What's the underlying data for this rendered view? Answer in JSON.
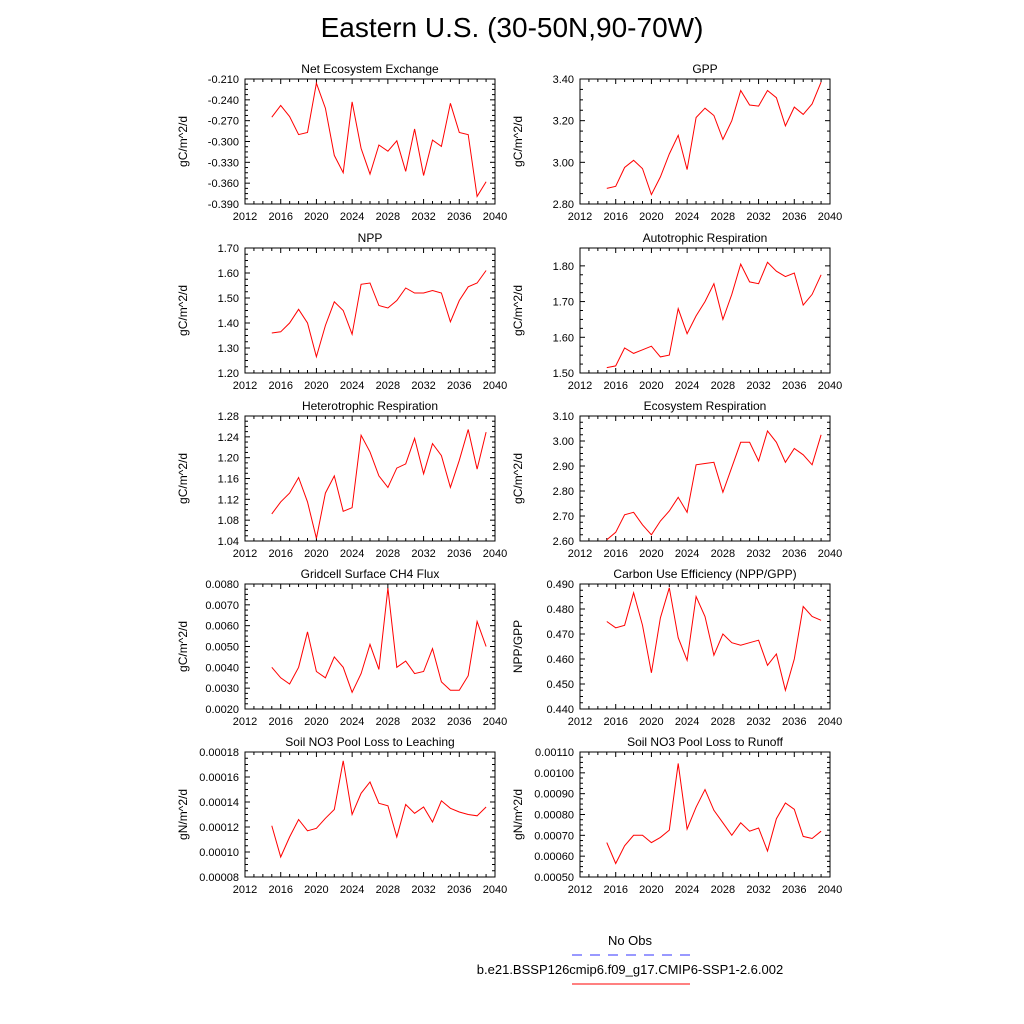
{
  "figure": {
    "title": "Eastern U.S. (30-50N,90-70W)"
  },
  "legend": {
    "entries": [
      {
        "label": "No Obs",
        "color": "#3333ff",
        "style": "dashed"
      },
      {
        "label": "b.e21.BSSP126cmip6.f09_g17.CMIP6-SSP1-2.6.002",
        "color": "#ff0000",
        "style": "solid"
      }
    ]
  },
  "chart_data": [
    {
      "type": "line",
      "title": "Net Ecosystem Exchange",
      "xlabel": "",
      "ylabel": "gC/m^2/d",
      "xlim": [
        2012,
        2040
      ],
      "ylim": [
        -0.39,
        -0.21
      ],
      "xticks": [
        "2012",
        "2016",
        "2020",
        "2024",
        "2028",
        "2032",
        "2036",
        "2040"
      ],
      "yticks": [
        "-0.390",
        "-0.360",
        "-0.330",
        "-0.300",
        "-0.270",
        "-0.240",
        "-0.210"
      ],
      "series": [
        {
          "color": "#ff0000",
          "x": [
            2015,
            2016,
            2017,
            2018,
            2019,
            2020,
            2021,
            2022,
            2023,
            2024,
            2025,
            2026,
            2027,
            2028,
            2029,
            2030,
            2031,
            2032,
            2033,
            2034,
            2035,
            2036,
            2037,
            2038,
            2039
          ],
          "y": [
            -0.265,
            -0.248,
            -0.264,
            -0.29,
            -0.287,
            -0.216,
            -0.252,
            -0.32,
            -0.345,
            -0.243,
            -0.31,
            -0.347,
            -0.305,
            -0.314,
            -0.299,
            -0.343,
            -0.282,
            -0.349,
            -0.298,
            -0.307,
            -0.245,
            -0.287,
            -0.29,
            -0.379,
            -0.358
          ]
        }
      ]
    },
    {
      "type": "line",
      "title": "GPP",
      "xlabel": "",
      "ylabel": "gC/m^2/d",
      "xlim": [
        2012,
        2040
      ],
      "ylim": [
        2.8,
        3.4
      ],
      "xticks": [
        "2012",
        "2016",
        "2020",
        "2024",
        "2028",
        "2032",
        "2036",
        "2040"
      ],
      "yticks": [
        "2.80",
        "3.00",
        "3.20",
        "3.40"
      ],
      "series": [
        {
          "color": "#ff0000",
          "x": [
            2015,
            2016,
            2017,
            2018,
            2019,
            2020,
            2021,
            2022,
            2023,
            2024,
            2025,
            2026,
            2027,
            2028,
            2029,
            2030,
            2031,
            2032,
            2033,
            2034,
            2035,
            2036,
            2037,
            2038,
            2039
          ],
          "y": [
            2.875,
            2.885,
            2.975,
            3.01,
            2.97,
            2.845,
            2.93,
            3.04,
            3.13,
            2.965,
            3.215,
            3.26,
            3.225,
            3.11,
            3.2,
            3.345,
            3.275,
            3.27,
            3.345,
            3.31,
            3.175,
            3.265,
            3.23,
            3.28,
            3.385
          ]
        }
      ]
    },
    {
      "type": "line",
      "title": "NPP",
      "xlabel": "",
      "ylabel": "gC/m^2/d",
      "xlim": [
        2012,
        2040
      ],
      "ylim": [
        1.2,
        1.7
      ],
      "xticks": [
        "2012",
        "2016",
        "2020",
        "2024",
        "2028",
        "2032",
        "2036",
        "2040"
      ],
      "yticks": [
        "1.20",
        "1.30",
        "1.40",
        "1.50",
        "1.60",
        "1.70"
      ],
      "series": [
        {
          "color": "#ff0000",
          "x": [
            2015,
            2016,
            2017,
            2018,
            2019,
            2020,
            2021,
            2022,
            2023,
            2024,
            2025,
            2026,
            2027,
            2028,
            2029,
            2030,
            2031,
            2032,
            2033,
            2034,
            2035,
            2036,
            2037,
            2038,
            2039
          ],
          "y": [
            1.36,
            1.365,
            1.4,
            1.455,
            1.4,
            1.265,
            1.39,
            1.485,
            1.45,
            1.355,
            1.555,
            1.56,
            1.47,
            1.46,
            1.49,
            1.54,
            1.52,
            1.52,
            1.53,
            1.52,
            1.405,
            1.49,
            1.545,
            1.56,
            1.61
          ]
        }
      ]
    },
    {
      "type": "line",
      "title": "Autotrophic Respiration",
      "xlabel": "",
      "ylabel": "gC/m^2/d",
      "xlim": [
        2012,
        2040
      ],
      "ylim": [
        1.5,
        1.85
      ],
      "xticks": [
        "2012",
        "2016",
        "2020",
        "2024",
        "2028",
        "2032",
        "2036",
        "2040"
      ],
      "yticks": [
        "1.50",
        "1.60",
        "1.70",
        "1.80"
      ],
      "series": [
        {
          "color": "#ff0000",
          "x": [
            2015,
            2016,
            2017,
            2018,
            2019,
            2020,
            2021,
            2022,
            2023,
            2024,
            2025,
            2026,
            2027,
            2028,
            2029,
            2030,
            2031,
            2032,
            2033,
            2034,
            2035,
            2036,
            2037,
            2038,
            2039
          ],
          "y": [
            1.515,
            1.52,
            1.57,
            1.555,
            1.565,
            1.575,
            1.545,
            1.55,
            1.68,
            1.61,
            1.66,
            1.7,
            1.75,
            1.65,
            1.72,
            1.805,
            1.755,
            1.75,
            1.81,
            1.785,
            1.77,
            1.78,
            1.69,
            1.72,
            1.775
          ]
        }
      ]
    },
    {
      "type": "line",
      "title": "Heterotrophic Respiration",
      "xlabel": "",
      "ylabel": "gC/m^2/d",
      "xlim": [
        2012,
        2040
      ],
      "ylim": [
        1.04,
        1.28
      ],
      "xticks": [
        "2012",
        "2016",
        "2020",
        "2024",
        "2028",
        "2032",
        "2036",
        "2040"
      ],
      "yticks": [
        "1.04",
        "1.08",
        "1.12",
        "1.16",
        "1.20",
        "1.24",
        "1.28"
      ],
      "series": [
        {
          "color": "#ff0000",
          "x": [
            2015,
            2016,
            2017,
            2018,
            2019,
            2020,
            2021,
            2022,
            2023,
            2024,
            2025,
            2026,
            2027,
            2028,
            2029,
            2030,
            2031,
            2032,
            2033,
            2034,
            2035,
            2036,
            2037,
            2038,
            2039
          ],
          "y": [
            1.092,
            1.115,
            1.132,
            1.162,
            1.115,
            1.045,
            1.132,
            1.165,
            1.097,
            1.104,
            1.243,
            1.211,
            1.165,
            1.143,
            1.18,
            1.188,
            1.237,
            1.169,
            1.227,
            1.204,
            1.143,
            1.195,
            1.254,
            1.178,
            1.249
          ]
        }
      ]
    },
    {
      "type": "line",
      "title": "Ecosystem Respiration",
      "xlabel": "",
      "ylabel": "gC/m^2/d",
      "xlim": [
        2012,
        2040
      ],
      "ylim": [
        2.6,
        3.1
      ],
      "xticks": [
        "2012",
        "2016",
        "2020",
        "2024",
        "2028",
        "2032",
        "2036",
        "2040"
      ],
      "yticks": [
        "2.60",
        "2.70",
        "2.80",
        "2.90",
        "3.00",
        "3.10"
      ],
      "series": [
        {
          "color": "#ff0000",
          "x": [
            2015,
            2016,
            2017,
            2018,
            2019,
            2020,
            2021,
            2022,
            2023,
            2024,
            2025,
            2026,
            2027,
            2028,
            2029,
            2030,
            2031,
            2032,
            2033,
            2034,
            2035,
            2036,
            2037,
            2038,
            2039
          ],
          "y": [
            2.605,
            2.635,
            2.705,
            2.715,
            2.665,
            2.625,
            2.68,
            2.72,
            2.775,
            2.715,
            2.905,
            2.91,
            2.915,
            2.795,
            2.895,
            2.995,
            2.995,
            2.92,
            3.04,
            2.995,
            2.915,
            2.97,
            2.945,
            2.905,
            3.025
          ]
        }
      ]
    },
    {
      "type": "line",
      "title": "Gridcell Surface CH4 Flux",
      "xlabel": "",
      "ylabel": "gC/m^2/d",
      "xlim": [
        2012,
        2040
      ],
      "ylim": [
        0.002,
        0.008
      ],
      "xticks": [
        "2012",
        "2016",
        "2020",
        "2024",
        "2028",
        "2032",
        "2036",
        "2040"
      ],
      "yticks": [
        "0.0020",
        "0.0030",
        "0.0040",
        "0.0050",
        "0.0060",
        "0.0070",
        "0.0080"
      ],
      "series": [
        {
          "color": "#ff0000",
          "x": [
            2015,
            2016,
            2017,
            2018,
            2019,
            2020,
            2021,
            2022,
            2023,
            2024,
            2025,
            2026,
            2027,
            2028,
            2029,
            2030,
            2031,
            2032,
            2033,
            2034,
            2035,
            2036,
            2037,
            2038,
            2039
          ],
          "y": [
            0.004,
            0.0035,
            0.0032,
            0.004,
            0.0057,
            0.0038,
            0.0035,
            0.0045,
            0.004,
            0.0028,
            0.0037,
            0.0051,
            0.0039,
            0.0078,
            0.004,
            0.0043,
            0.0037,
            0.0038,
            0.0049,
            0.0033,
            0.0029,
            0.0029,
            0.0036,
            0.0062,
            0.005
          ]
        }
      ]
    },
    {
      "type": "line",
      "title": "Carbon Use Efficiency (NPP/GPP)",
      "xlabel": "",
      "ylabel": "NPP/GPP",
      "xlim": [
        2012,
        2040
      ],
      "ylim": [
        0.44,
        0.49
      ],
      "xticks": [
        "2012",
        "2016",
        "2020",
        "2024",
        "2028",
        "2032",
        "2036",
        "2040"
      ],
      "yticks": [
        "0.440",
        "0.450",
        "0.460",
        "0.470",
        "0.480",
        "0.490"
      ],
      "series": [
        {
          "color": "#ff0000",
          "x": [
            2015,
            2016,
            2017,
            2018,
            2019,
            2020,
            2021,
            2022,
            2023,
            2024,
            2025,
            2026,
            2027,
            2028,
            2029,
            2030,
            2031,
            2032,
            2033,
            2034,
            2035,
            2036,
            2037,
            2038,
            2039
          ],
          "y": [
            0.475,
            0.4725,
            0.4735,
            0.4865,
            0.4735,
            0.4545,
            0.4765,
            0.4885,
            0.4685,
            0.4595,
            0.485,
            0.477,
            0.4615,
            0.47,
            0.4665,
            0.4655,
            0.4665,
            0.4675,
            0.4575,
            0.462,
            0.4475,
            0.46,
            0.481,
            0.477,
            0.4755
          ]
        }
      ]
    },
    {
      "type": "line",
      "title": "Soil NO3 Pool Loss to Leaching",
      "xlabel": "",
      "ylabel": "gN/m^2/d",
      "xlim": [
        2012,
        2040
      ],
      "ylim": [
        8e-05,
        0.00018
      ],
      "xticks": [
        "2012",
        "2016",
        "2020",
        "2024",
        "2028",
        "2032",
        "2036",
        "2040"
      ],
      "yticks": [
        "0.00008",
        "0.00010",
        "0.00012",
        "0.00014",
        "0.00016",
        "0.00018"
      ],
      "series": [
        {
          "color": "#ff0000",
          "x": [
            2015,
            2016,
            2017,
            2018,
            2019,
            2020,
            2021,
            2022,
            2023,
            2024,
            2025,
            2026,
            2027,
            2028,
            2029,
            2030,
            2031,
            2032,
            2033,
            2034,
            2035,
            2036,
            2037,
            2038,
            2039
          ],
          "y": [
            0.000121,
            9.6e-05,
            0.000112,
            0.000126,
            0.000117,
            0.000119,
            0.000127,
            0.000134,
            0.000173,
            0.00013,
            0.000147,
            0.000156,
            0.000139,
            0.000137,
            0.000112,
            0.000138,
            0.000131,
            0.000136,
            0.000124,
            0.000141,
            0.000135,
            0.000132,
            0.00013,
            0.000129,
            0.000136
          ]
        }
      ]
    },
    {
      "type": "line",
      "title": "Soil NO3 Pool Loss to Runoff",
      "xlabel": "",
      "ylabel": "gN/m^2/d",
      "xlim": [
        2012,
        2040
      ],
      "ylim": [
        0.0005,
        0.0011
      ],
      "xticks": [
        "2012",
        "2016",
        "2020",
        "2024",
        "2028",
        "2032",
        "2036",
        "2040"
      ],
      "yticks": [
        "0.00050",
        "0.00060",
        "0.00070",
        "0.00080",
        "0.00090",
        "0.00100",
        "0.00110"
      ],
      "series": [
        {
          "color": "#ff0000",
          "x": [
            2015,
            2016,
            2017,
            2018,
            2019,
            2020,
            2021,
            2022,
            2023,
            2024,
            2025,
            2026,
            2027,
            2028,
            2029,
            2030,
            2031,
            2032,
            2033,
            2034,
            2035,
            2036,
            2037,
            2038,
            2039
          ],
          "y": [
            0.000665,
            0.000565,
            0.00065,
            0.0007,
            0.0007,
            0.000665,
            0.00069,
            0.000725,
            0.001045,
            0.00073,
            0.000835,
            0.00092,
            0.00082,
            0.00076,
            0.0007,
            0.00076,
            0.00072,
            0.000735,
            0.000625,
            0.00078,
            0.000855,
            0.000825,
            0.000695,
            0.000685,
            0.00072
          ]
        }
      ]
    }
  ]
}
